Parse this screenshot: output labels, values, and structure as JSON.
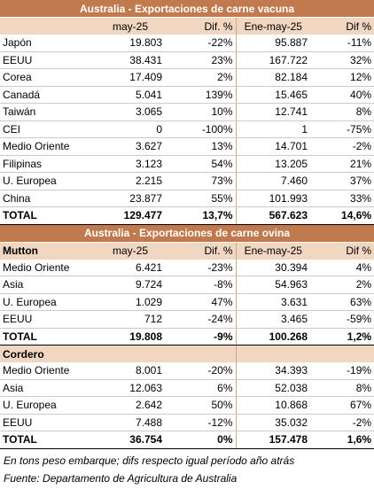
{
  "beef": {
    "title": "Australia - Exportaciones de carne vacuna",
    "header": {
      "label": "",
      "may": "may-25",
      "dif1": "Dif. %",
      "ene": "Ene-may-25",
      "dif2": "Dif %"
    },
    "rows": [
      {
        "label": "Japón",
        "may": "19.803",
        "dif1": "-22%",
        "ene": "95.887",
        "dif2": "-11%"
      },
      {
        "label": "EEUU",
        "may": "38.431",
        "dif1": "23%",
        "ene": "167.722",
        "dif2": "32%"
      },
      {
        "label": "Corea",
        "may": "17.409",
        "dif1": "2%",
        "ene": "82.184",
        "dif2": "12%"
      },
      {
        "label": "Canadá",
        "may": "5.041",
        "dif1": "139%",
        "ene": "15.465",
        "dif2": "40%"
      },
      {
        "label": "Taiwán",
        "may": "3.065",
        "dif1": "10%",
        "ene": "12.741",
        "dif2": "8%"
      },
      {
        "label": "CEI",
        "may": "0",
        "dif1": "-100%",
        "ene": "1",
        "dif2": "-75%"
      },
      {
        "label": "Medio Oriente",
        "may": "3.627",
        "dif1": "13%",
        "ene": "14.701",
        "dif2": "-2%"
      },
      {
        "label": "Filipinas",
        "may": "3.123",
        "dif1": "54%",
        "ene": "13.205",
        "dif2": "21%"
      },
      {
        "label": "U. Europea",
        "may": "2.215",
        "dif1": "73%",
        "ene": "7.460",
        "dif2": "37%"
      },
      {
        "label": "China",
        "may": "23.877",
        "dif1": "55%",
        "ene": "101.993",
        "dif2": "33%"
      }
    ],
    "total": {
      "label": "TOTAL",
      "may": "129.477",
      "dif1": "13,7%",
      "ene": "567.623",
      "dif2": "14,6%"
    }
  },
  "sheep": {
    "title": "Australia - Exportaciones de carne ovina",
    "mutton": {
      "header": {
        "label": "Mutton",
        "may": "may-25",
        "dif1": "Dif. %",
        "ene": "Ene-may-25",
        "dif2": "Dif %"
      },
      "rows": [
        {
          "label": "Medio Oriente",
          "may": "6.421",
          "dif1": "-23%",
          "ene": "30.394",
          "dif2": "4%"
        },
        {
          "label": "Asia",
          "may": "9.724",
          "dif1": "-8%",
          "ene": "54.963",
          "dif2": "2%"
        },
        {
          "label": "U. Europea",
          "may": "1.029",
          "dif1": "47%",
          "ene": "3.631",
          "dif2": "63%"
        },
        {
          "label": "EEUU",
          "may": "712",
          "dif1": "-24%",
          "ene": "3.465",
          "dif2": "-59%"
        }
      ],
      "total": {
        "label": "TOTAL",
        "may": "19.808",
        "dif1": "-9%",
        "ene": "100.268",
        "dif2": "1,2%"
      }
    },
    "lamb": {
      "header": {
        "label": "Cordero"
      },
      "rows": [
        {
          "label": "Medio Oriente",
          "may": "8.001",
          "dif1": "-20%",
          "ene": "34.393",
          "dif2": "-19%"
        },
        {
          "label": "Asia",
          "may": "12.063",
          "dif1": "6%",
          "ene": "52.038",
          "dif2": "8%"
        },
        {
          "label": "U. Europea",
          "may": "2.642",
          "dif1": "50%",
          "ene": "10.868",
          "dif2": "67%"
        },
        {
          "label": "EEUU",
          "may": "7.488",
          "dif1": "-12%",
          "ene": "35.032",
          "dif2": "-2%"
        }
      ],
      "total": {
        "label": "TOTAL",
        "may": "36.754",
        "dif1": "0%",
        "ene": "157.478",
        "dif2": "1,6%"
      }
    }
  },
  "notes": {
    "units": "En tons peso embarque; difs respecto igual período año atrás",
    "source": "Fuente: Departamento de Agricultura de Australia"
  }
}
